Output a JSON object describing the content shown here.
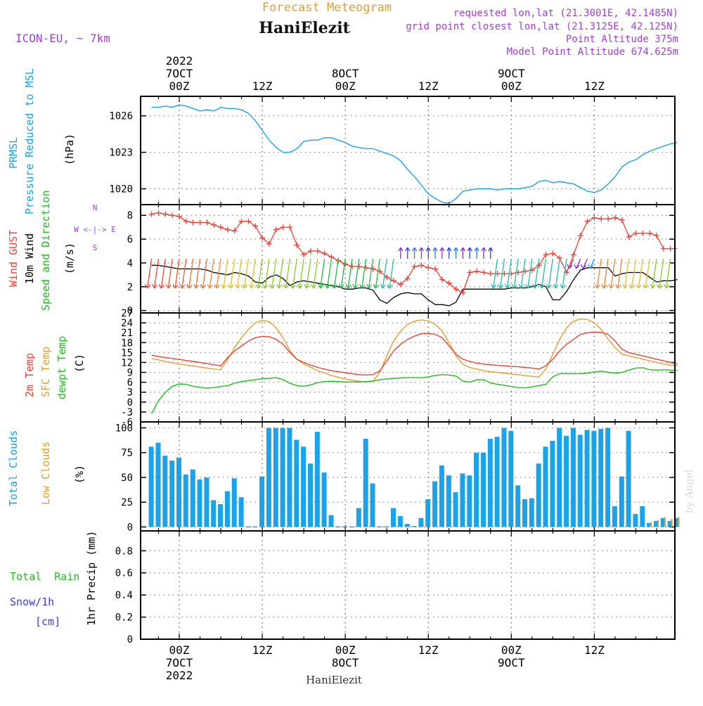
{
  "header": {
    "top_title": "Forecast Meteogram",
    "station": "HaniElezit",
    "model": "ICON-EU, ~ 7km",
    "requested": "requested lon,lat (21.3001E, 42.1485N)",
    "closest": "grid point closest lon,lat (21.3125E, 42.125N)",
    "point_alt": "Point Altitude 375m",
    "model_alt": "Model Point Altitude 674.625m",
    "footer_station": "HaniElezit",
    "watermark": "by Angel"
  },
  "colors": {
    "pressure": "#1aa3e8",
    "gust": "#e8443a",
    "wind": "#000000",
    "temp": "#e8443a",
    "sfc_temp": "#e0a030",
    "dewpt": "#22bb22",
    "total_clouds": "#1aa3e8",
    "low_clouds": "#e0a030",
    "rain": "#22bb22",
    "snow": "#3a3ae8",
    "purple": "#a040d0"
  },
  "top_axis": [
    {
      "line1": "2022",
      "line2": "7OCT",
      "line3": "00Z"
    },
    {
      "line1": "",
      "line2": "",
      "line3": "12Z"
    },
    {
      "line1": "",
      "line2": "8OCT",
      "line3": "00Z"
    },
    {
      "line1": "",
      "line2": "",
      "line3": "12Z"
    },
    {
      "line1": "",
      "line2": "9OCT",
      "line3": "00Z"
    },
    {
      "line1": "",
      "line2": "",
      "line3": "12Z"
    }
  ],
  "bottom_axis": [
    {
      "line1": "00Z",
      "line2": "7OCT",
      "line3": "2022"
    },
    {
      "line1": "12Z",
      "line2": "",
      "line3": ""
    },
    {
      "line1": "00Z",
      "line2": "8OCT",
      "line3": ""
    },
    {
      "line1": "12Z",
      "line2": "",
      "line3": ""
    },
    {
      "line1": "00Z",
      "line2": "9OCT",
      "line3": ""
    },
    {
      "line1": "12Z",
      "line2": "",
      "line3": ""
    }
  ],
  "panel_labels": {
    "p1": {
      "a": "PRMSL",
      "b": "Pressure Reduced to MSL",
      "unit": "(hPa)"
    },
    "p2": {
      "a": "Wind GUST",
      "b": "10m Wind",
      "c": "Speed and Direction",
      "unit": "(m/s)",
      "compass_n": "N",
      "compass_s": "S",
      "compass_we": "W <-|-> E"
    },
    "p3": {
      "a": "2m Temp",
      "b": "SFC Temp",
      "c": "dewpt Temp",
      "unit": "(C)"
    },
    "p4": {
      "a": "Total Clouds",
      "b": "Low Clouds",
      "unit": "(%)"
    },
    "p5": {
      "a": "Total  Rain",
      "b": "Snow/1h",
      "c": "[cm]",
      "unit": "1hr Precip (mm)"
    }
  },
  "chart_data": [
    {
      "type": "line",
      "name": "pressure",
      "ylabel": "(hPa)",
      "ylim": [
        1018.7,
        1027.6
      ],
      "yticks": [
        "1020",
        "1023",
        "1026"
      ],
      "x": [
        -4,
        -3,
        -2,
        -1,
        0,
        1,
        2,
        3,
        4,
        5,
        6,
        7,
        8,
        9,
        10,
        11,
        12,
        13,
        14,
        15,
        16,
        17,
        18,
        19,
        20,
        21,
        22,
        23,
        24,
        25,
        26,
        27,
        28,
        29,
        30,
        31,
        32,
        33,
        34,
        35,
        36,
        37,
        38,
        39,
        40,
        41,
        42,
        43,
        44,
        45,
        46,
        47,
        48,
        49,
        50,
        51,
        52,
        53,
        54,
        55,
        56,
        57,
        58,
        59,
        60,
        61,
        62,
        63,
        64,
        65,
        66,
        67,
        68,
        69,
        70,
        71,
        72
      ],
      "values": [
        1026.7,
        1026.7,
        1026.8,
        1026.7,
        1026.9,
        1026.8,
        1026.6,
        1026.4,
        1026.5,
        1026.4,
        1026.7,
        1026.6,
        1026.6,
        1026.5,
        1026.2,
        1025.6,
        1024.8,
        1024.0,
        1023.4,
        1023.0,
        1023.0,
        1023.3,
        1023.9,
        1024.0,
        1024.0,
        1024.2,
        1024.2,
        1024.0,
        1023.8,
        1023.5,
        1023.4,
        1023.3,
        1023.3,
        1023.1,
        1022.9,
        1022.7,
        1022.3,
        1021.6,
        1021.0,
        1020.3,
        1019.6,
        1019.2,
        1018.9,
        1018.8,
        1019.2,
        1019.8,
        1019.9,
        1020.0,
        1020.0,
        1020.0,
        1019.9,
        1020.0,
        1020.0,
        1020.0,
        1020.1,
        1020.2,
        1020.6,
        1020.7,
        1020.5,
        1020.6,
        1020.5,
        1020.4,
        1020.1,
        1019.8,
        1019.7,
        1019.9,
        1020.4,
        1021.0,
        1021.8,
        1022.2,
        1022.4,
        1022.8,
        1023.1,
        1023.3,
        1023.5,
        1023.7,
        1023.8
      ]
    },
    {
      "type": "line",
      "name": "wind",
      "ylabel": "(m/s)",
      "ylim": [
        -0.2,
        8.9
      ],
      "yticks": [
        "0",
        "2",
        "4",
        "6",
        "8"
      ],
      "x": [
        -4,
        -3,
        -2,
        -1,
        0,
        1,
        2,
        3,
        4,
        5,
        6,
        7,
        8,
        9,
        10,
        11,
        12,
        13,
        14,
        15,
        16,
        17,
        18,
        19,
        20,
        21,
        22,
        23,
        24,
        25,
        26,
        27,
        28,
        29,
        30,
        31,
        32,
        33,
        34,
        35,
        36,
        37,
        38,
        39,
        40,
        41,
        42,
        43,
        44,
        45,
        46,
        47,
        48,
        49,
        50,
        51,
        52,
        53,
        54,
        55,
        56,
        57,
        58,
        59,
        60,
        61,
        62,
        63,
        64,
        65,
        66,
        67,
        68,
        69,
        70,
        71,
        72
      ],
      "series": [
        {
          "name": "Wind GUST",
          "values": [
            8.1,
            8.2,
            8.1,
            8.0,
            7.9,
            7.5,
            7.4,
            7.4,
            7.4,
            7.2,
            7.0,
            6.8,
            6.7,
            7.5,
            7.5,
            7.1,
            6.1,
            5.6,
            6.8,
            7.0,
            7.0,
            5.5,
            4.7,
            5.0,
            5.0,
            4.8,
            4.5,
            4.2,
            3.9,
            3.7,
            3.7,
            3.6,
            3.5,
            3.3,
            2.8,
            2.5,
            2.2,
            2.7,
            3.7,
            3.8,
            3.6,
            3.5,
            2.6,
            2.3,
            1.8,
            1.5,
            3.2,
            3.3,
            3.2,
            3.1,
            3.1,
            3.1,
            3.1,
            3.2,
            3.3,
            3.4,
            3.8,
            4.7,
            4.8,
            4.4,
            3.2,
            4.7,
            6.3,
            7.5,
            7.8,
            7.7,
            7.7,
            7.8,
            7.6,
            6.2,
            6.5,
            6.5,
            6.5,
            6.3,
            5.2,
            5.2,
            5.2
          ]
        },
        {
          "name": "10m Wind",
          "values": [
            3.8,
            3.8,
            3.7,
            3.6,
            3.5,
            3.5,
            3.5,
            3.5,
            3.4,
            3.2,
            3.1,
            3.0,
            3.2,
            3.1,
            2.9,
            2.4,
            2.3,
            2.8,
            3.0,
            2.7,
            2.1,
            2.4,
            2.5,
            2.4,
            2.3,
            2.2,
            2.1,
            2.0,
            1.8,
            1.8,
            1.9,
            1.9,
            1.7,
            0.9,
            0.6,
            1.1,
            1.4,
            1.5,
            1.4,
            1.4,
            0.9,
            0.5,
            0.5,
            0.4,
            0.7,
            1.8,
            1.8,
            1.8,
            1.8,
            1.8,
            1.8,
            1.8,
            1.9,
            1.9,
            1.9,
            2.0,
            2.2,
            2.0,
            0.9,
            0.9,
            1.6,
            2.6,
            3.4,
            3.6,
            3.6,
            3.6,
            3.6,
            2.9,
            3.1,
            3.2,
            3.2,
            3.2,
            2.8,
            2.4,
            2.5,
            2.5,
            2.6
          ]
        }
      ]
    },
    {
      "type": "line",
      "name": "temperature",
      "ylabel": "(C)",
      "ylim": [
        -6,
        27
      ],
      "yticks": [
        "-6",
        "-3",
        "0",
        "3",
        "6",
        "9",
        "12",
        "15",
        "18",
        "21",
        "24",
        "27"
      ],
      "x": [
        -4,
        -3,
        -2,
        -1,
        0,
        1,
        2,
        3,
        4,
        5,
        6,
        7,
        8,
        9,
        10,
        11,
        12,
        13,
        14,
        15,
        16,
        17,
        18,
        19,
        20,
        21,
        22,
        23,
        24,
        25,
        26,
        27,
        28,
        29,
        30,
        31,
        32,
        33,
        34,
        35,
        36,
        37,
        38,
        39,
        40,
        41,
        42,
        43,
        44,
        45,
        46,
        47,
        48,
        49,
        50,
        51,
        52,
        53,
        54,
        55,
        56,
        57,
        58,
        59,
        60,
        61,
        62,
        63,
        64,
        65,
        66,
        67,
        68,
        69,
        70,
        71,
        72
      ],
      "series": [
        {
          "name": "2m Temp",
          "values": [
            14.2,
            13.8,
            13.5,
            13.2,
            12.9,
            12.6,
            12.3,
            12.0,
            11.7,
            11.3,
            11.0,
            13.5,
            15.5,
            17.0,
            18.5,
            19.5,
            19.9,
            19.8,
            19.0,
            17.5,
            15.0,
            13.0,
            12.0,
            11.2,
            10.5,
            10.0,
            9.5,
            9.2,
            8.9,
            8.6,
            8.3,
            8.2,
            8.3,
            9.5,
            12.5,
            15.5,
            17.5,
            19.0,
            20.0,
            20.7,
            20.8,
            20.5,
            19.5,
            17.0,
            14.5,
            13.0,
            12.3,
            11.8,
            11.5,
            11.3,
            11.1,
            11.0,
            10.8,
            10.7,
            10.5,
            10.3,
            10.0,
            11.0,
            13.0,
            15.5,
            17.5,
            19.0,
            20.5,
            21.0,
            21.2,
            21.1,
            20.5,
            18.5,
            16.0,
            15.0,
            14.5,
            14.0,
            13.5,
            13.0,
            12.5,
            12.0,
            11.6
          ]
        },
        {
          "name": "SFC Temp",
          "values": [
            13.2,
            12.8,
            12.3,
            11.9,
            11.5,
            11.2,
            10.9,
            10.6,
            10.3,
            10.0,
            9.8,
            13.0,
            16.5,
            19.5,
            22.0,
            24.0,
            24.8,
            24.3,
            22.5,
            19.5,
            15.5,
            13.0,
            11.5,
            10.5,
            9.5,
            8.8,
            8.1,
            7.5,
            7.0,
            6.6,
            6.3,
            6.1,
            6.3,
            9.0,
            14.0,
            18.5,
            21.5,
            23.5,
            24.5,
            24.9,
            24.6,
            23.5,
            21.5,
            18.0,
            14.0,
            11.5,
            10.5,
            10.0,
            9.5,
            9.2,
            9.0,
            8.8,
            8.5,
            8.3,
            8.0,
            7.8,
            7.6,
            10.0,
            14.5,
            19.0,
            22.5,
            24.5,
            25.2,
            25.0,
            24.0,
            22.0,
            19.0,
            16.5,
            14.5,
            14.0,
            13.5,
            13.0,
            12.5,
            12.0,
            11.5,
            11.2,
            11.0
          ]
        },
        {
          "name": "dewpt Temp",
          "values": [
            -3.5,
            0.5,
            3.0,
            4.8,
            5.5,
            5.4,
            4.8,
            4.5,
            4.2,
            4.4,
            4.7,
            5.0,
            5.7,
            6.2,
            6.5,
            6.8,
            7.1,
            7.2,
            7.4,
            6.8,
            5.7,
            5.0,
            4.8,
            5.2,
            5.9,
            6.2,
            6.3,
            6.2,
            6.1,
            6.1,
            6.1,
            6.2,
            6.4,
            6.8,
            7.0,
            7.2,
            7.3,
            7.4,
            7.4,
            7.4,
            7.6,
            8.1,
            8.3,
            8.2,
            7.9,
            6.4,
            6.0,
            6.8,
            6.8,
            5.8,
            5.4,
            5.1,
            4.7,
            4.4,
            4.3,
            4.6,
            5.0,
            5.4,
            7.7,
            8.6,
            8.6,
            8.6,
            8.6,
            8.8,
            9.1,
            9.4,
            9.0,
            8.8,
            9.0,
            9.7,
            10.3,
            10.4,
            9.8,
            9.7,
            9.8,
            9.7,
            9.6
          ]
        }
      ]
    },
    {
      "type": "bar",
      "name": "clouds",
      "ylabel": "(%)",
      "ylim": [
        -4,
        106
      ],
      "yticks": [
        "0",
        "25",
        "50",
        "75",
        "100"
      ],
      "x": [
        -4,
        -3,
        -2,
        -1,
        0,
        1,
        2,
        3,
        4,
        5,
        6,
        7,
        8,
        9,
        10,
        11,
        12,
        13,
        14,
        15,
        16,
        17,
        18,
        19,
        20,
        21,
        22,
        23,
        24,
        25,
        26,
        27,
        28,
        29,
        30,
        31,
        32,
        33,
        34,
        35,
        36,
        37,
        38,
        39,
        40,
        41,
        42,
        43,
        44,
        45,
        46,
        47,
        48,
        49,
        50,
        51,
        52,
        53,
        54,
        55,
        56,
        57,
        58,
        59,
        60,
        61,
        62,
        63,
        64,
        65,
        66,
        67,
        68,
        69,
        70,
        71,
        72
      ],
      "series": [
        {
          "name": "Total Clouds",
          "values": [
            81,
            85,
            72,
            67,
            70,
            53,
            58,
            48,
            50,
            27,
            23,
            36,
            49,
            30,
            0,
            0,
            51,
            100,
            100,
            100,
            100,
            88,
            81,
            64,
            96,
            55,
            12,
            0,
            0,
            0,
            19,
            89,
            44,
            0,
            0,
            19,
            11,
            3,
            1,
            9,
            28,
            46,
            62,
            52,
            35,
            54,
            52,
            75,
            75,
            89,
            91,
            100,
            97,
            42,
            28,
            29,
            64,
            81,
            87,
            100,
            92,
            100,
            93,
            98,
            97,
            99,
            100,
            21,
            51,
            97,
            13,
            21,
            4,
            6,
            9,
            6,
            9
          ]
        },
        {
          "name": "Low Clouds",
          "values": [
            0,
            0,
            0,
            0,
            0,
            0,
            0,
            0,
            0,
            0,
            0,
            0,
            0,
            0,
            0,
            0,
            0,
            0,
            0,
            0,
            0,
            0,
            0,
            0,
            0,
            0,
            0,
            0,
            0,
            0,
            0,
            0,
            0,
            0,
            0,
            0,
            0,
            0,
            0,
            0,
            0,
            0,
            0,
            0,
            0,
            0,
            0,
            0,
            0,
            0,
            0,
            0,
            0,
            0,
            0,
            0,
            0,
            0,
            0,
            0,
            0,
            0,
            0,
            0,
            0,
            0,
            1,
            0,
            0,
            0,
            0,
            0,
            5,
            7,
            10,
            8,
            10
          ]
        }
      ]
    },
    {
      "type": "bar",
      "name": "precip",
      "ylabel": "1hr Precip (mm)",
      "ylim": [
        0,
        0.98
      ],
      "yticks": [
        "0",
        "0.2",
        "0.4",
        "0.6",
        "0.8"
      ],
      "x": [],
      "values": []
    }
  ]
}
